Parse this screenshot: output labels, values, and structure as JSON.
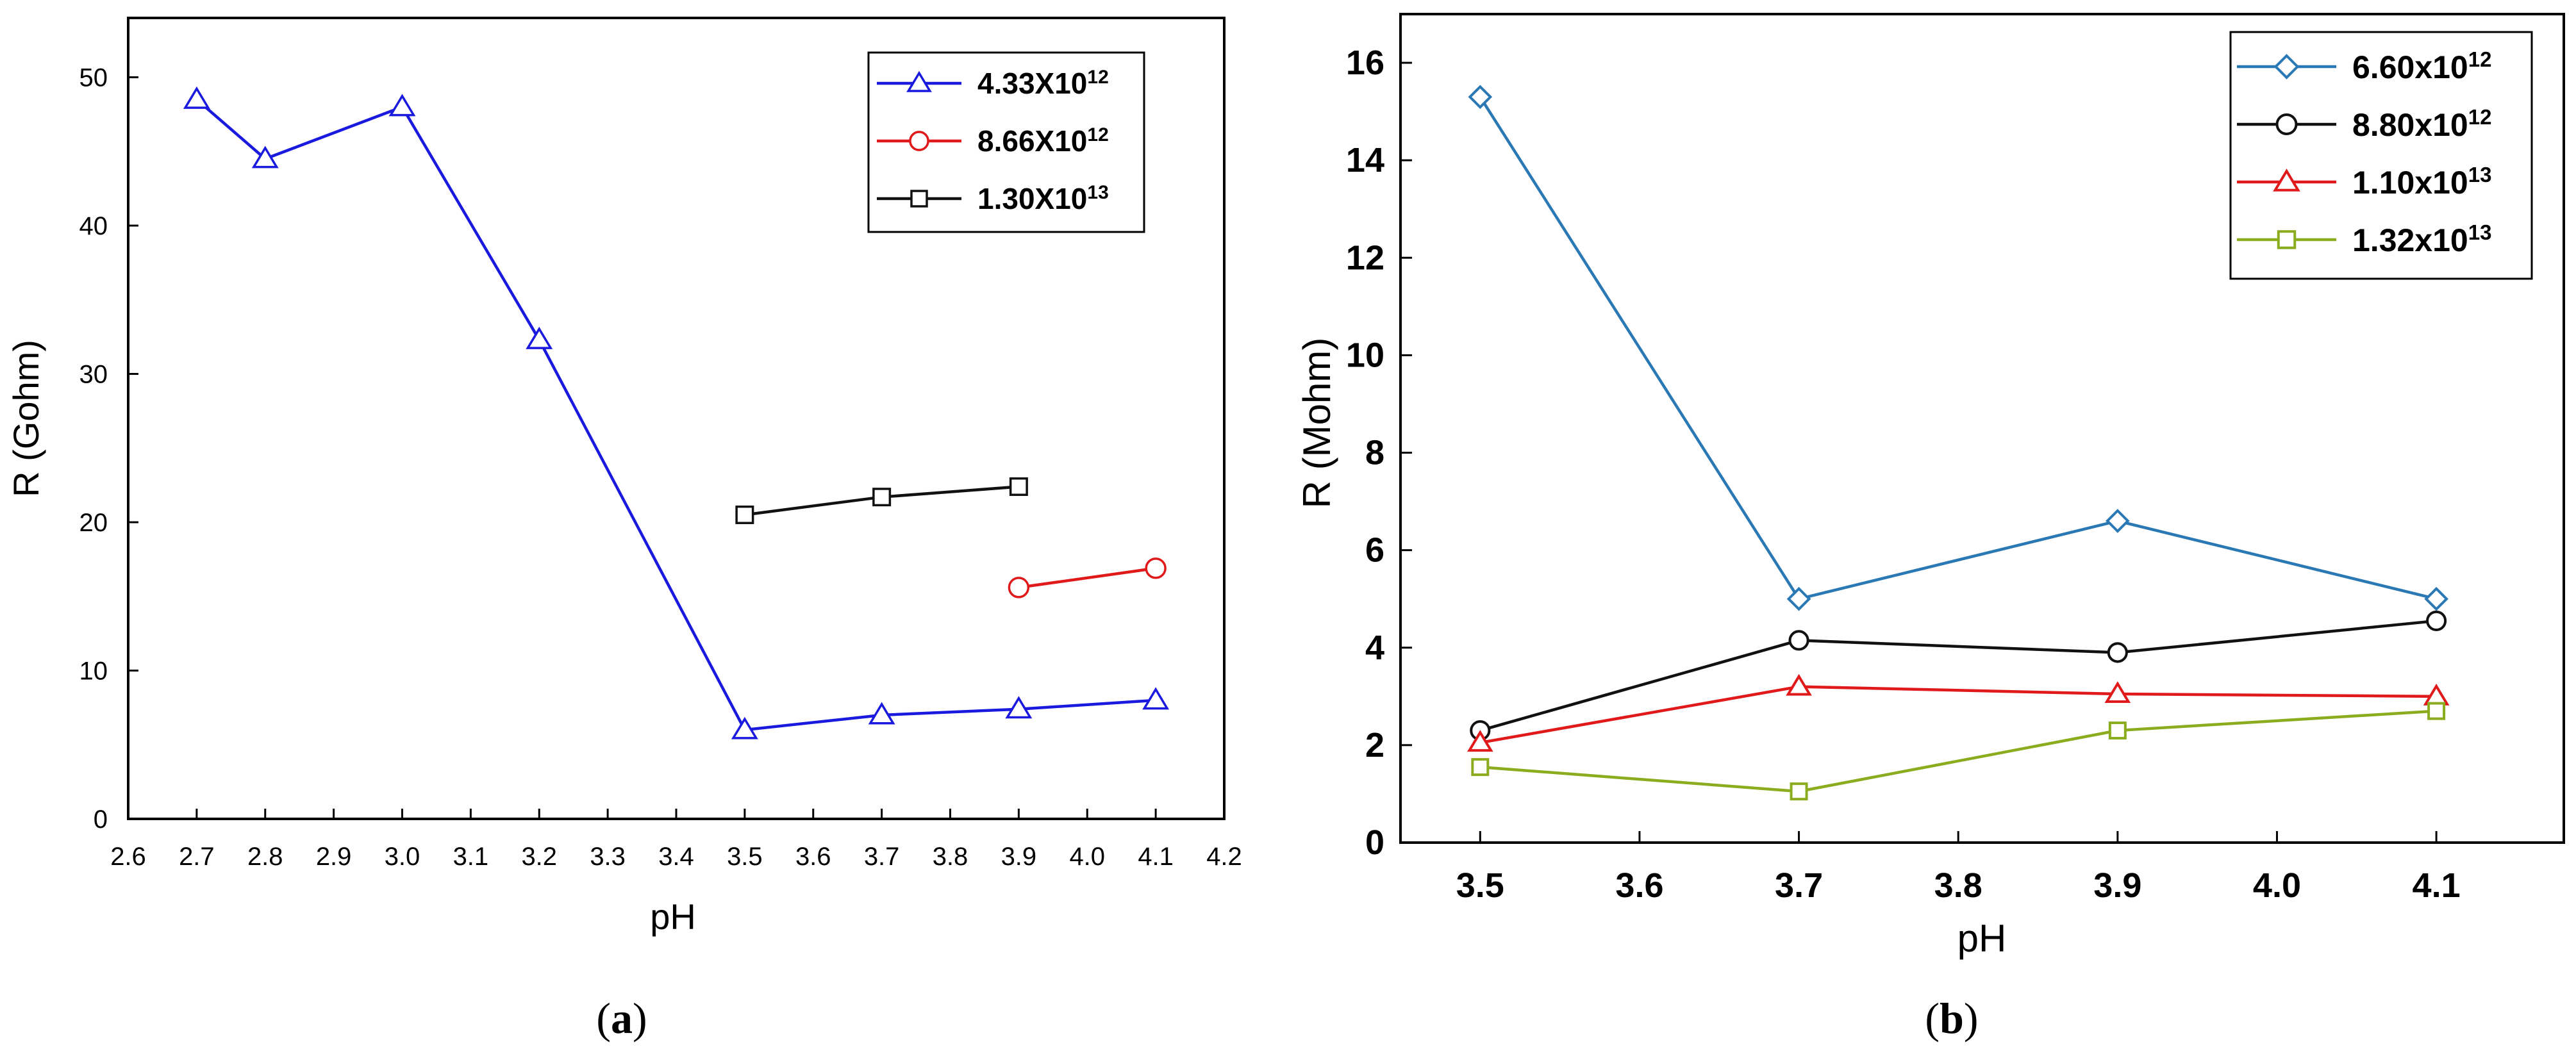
{
  "chart_data": [
    {
      "id": "a",
      "type": "line",
      "caption": "(a)",
      "caption_bold": "a",
      "xlabel": "pH",
      "ylabel": "R (Gohm)",
      "xlim": [
        2.6,
        4.2
      ],
      "ylim": [
        0,
        54
      ],
      "xticks": [
        "2.6",
        "2.7",
        "2.8",
        "2.9",
        "3.0",
        "3.1",
        "3.2",
        "3.3",
        "3.4",
        "3.5",
        "3.6",
        "3.7",
        "3.8",
        "3.9",
        "4.0",
        "4.1",
        "4.2"
      ],
      "yticks": [
        "0",
        "10",
        "20",
        "30",
        "40",
        "50"
      ],
      "legend_position": "top-right",
      "series": [
        {
          "name": "4.33X10",
          "exp": "12",
          "color": "#1a1adf",
          "marker": "triangle",
          "x": [
            2.7,
            2.8,
            3.0,
            3.2,
            3.5,
            3.7,
            3.9,
            4.1
          ],
          "y": [
            48.5,
            44.5,
            48.0,
            32.3,
            6.0,
            7.0,
            7.4,
            8.0
          ]
        },
        {
          "name": "8.66X10",
          "exp": "12",
          "color": "#e01a1a",
          "marker": "circle",
          "x": [
            3.9,
            4.1
          ],
          "y": [
            15.6,
            16.9
          ]
        },
        {
          "name": "1.30X10",
          "exp": "13",
          "color": "#111111",
          "marker": "square",
          "x": [
            3.5,
            3.7,
            3.9
          ],
          "y": [
            20.5,
            21.7,
            22.4
          ]
        }
      ]
    },
    {
      "id": "b",
      "type": "line",
      "caption": "(b)",
      "caption_bold": "b",
      "xlabel": "pH",
      "ylabel": "R (Mohm)",
      "xlim": [
        3.45,
        4.18
      ],
      "ylim": [
        0,
        17
      ],
      "xticks": [
        "3.5",
        "3.6",
        "3.7",
        "3.8",
        "3.9",
        "4.0",
        "4.1"
      ],
      "yticks": [
        "0",
        "2",
        "4",
        "6",
        "8",
        "10",
        "12",
        "14",
        "16"
      ],
      "legend_position": "top-right",
      "series": [
        {
          "name": "6.60x10",
          "exp": "12",
          "color": "#2a78b4",
          "marker": "diamond",
          "x": [
            3.5,
            3.7,
            3.9,
            4.1
          ],
          "y": [
            15.3,
            5.0,
            6.6,
            5.0
          ]
        },
        {
          "name": "8.80x10",
          "exp": "12",
          "color": "#111111",
          "marker": "circle",
          "x": [
            3.5,
            3.7,
            3.9,
            4.1
          ],
          "y": [
            2.3,
            4.15,
            3.9,
            4.55
          ]
        },
        {
          "name": "1.10x10",
          "exp": "13",
          "color": "#e01a1a",
          "marker": "triangle",
          "x": [
            3.5,
            3.7,
            3.9,
            4.1
          ],
          "y": [
            2.05,
            3.2,
            3.05,
            3.0
          ]
        },
        {
          "name": "1.32x10",
          "exp": "13",
          "color": "#8aac1e",
          "marker": "square",
          "x": [
            3.5,
            3.7,
            3.9,
            4.1
          ],
          "y": [
            1.55,
            1.05,
            2.3,
            2.7
          ]
        }
      ]
    }
  ]
}
